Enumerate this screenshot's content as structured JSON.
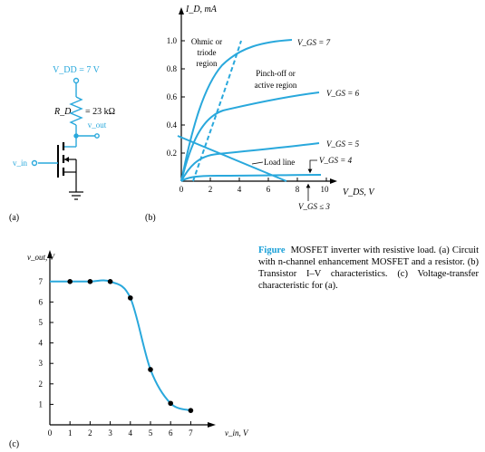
{
  "colors": {
    "accent": "#29a8dc",
    "black": "#000000"
  },
  "panel_labels": {
    "a": "(a)",
    "b": "(b)",
    "c": "(c)"
  },
  "circuit": {
    "supply_label": "V_DD = 7 V",
    "resistor_label": "R_D",
    "resistor_value": "= 23 kΩ",
    "output_label": "v_out",
    "input_label": "v_in"
  },
  "iv_plot": {
    "ylabel": "I_D, mA",
    "xlabel": "V_DS, V",
    "y_ticks": [
      "1.0",
      "0.8",
      "0.6",
      "0.4",
      "0.2"
    ],
    "x_ticks": [
      "0",
      "2",
      "4",
      "6",
      "8",
      "10"
    ],
    "annotations": {
      "ohmic": [
        "Ohmic or",
        "triode",
        "region"
      ],
      "pinchoff": [
        "Pinch-off or",
        "active region"
      ],
      "load_line": "Load line",
      "vgs7": "V_GS = 7",
      "vgs6": "V_GS = 6",
      "vgs5": "V_GS = 5",
      "vgs4": "V_GS = 4",
      "vgs3": "V_GS ≤ 3"
    }
  },
  "chart_data": {
    "type": "line",
    "title": "",
    "xlabel": "v_in, V",
    "ylabel": "v_out, V",
    "xlim": [
      0,
      7
    ],
    "ylim": [
      0,
      7
    ],
    "x_ticks": [
      "0",
      "1",
      "2",
      "3",
      "4",
      "5",
      "6",
      "7"
    ],
    "y_ticks": [
      "1",
      "2",
      "3",
      "4",
      "5",
      "6",
      "7"
    ],
    "points": [
      {
        "x": 1,
        "y": 7.0
      },
      {
        "x": 2,
        "y": 7.0
      },
      {
        "x": 3,
        "y": 7.0
      },
      {
        "x": 4,
        "y": 6.2
      },
      {
        "x": 5,
        "y": 2.7
      },
      {
        "x": 6,
        "y": 1.05
      },
      {
        "x": 7,
        "y": 0.7
      }
    ]
  },
  "caption": {
    "figure_word": "Figure",
    "text": "MOSFET inverter with resistive load. (a) Circuit with n-channel enhancement MOSFET and a resistor. (b) Transistor I–V characteristics. (c) Voltage-transfer characteristic for (a)."
  }
}
